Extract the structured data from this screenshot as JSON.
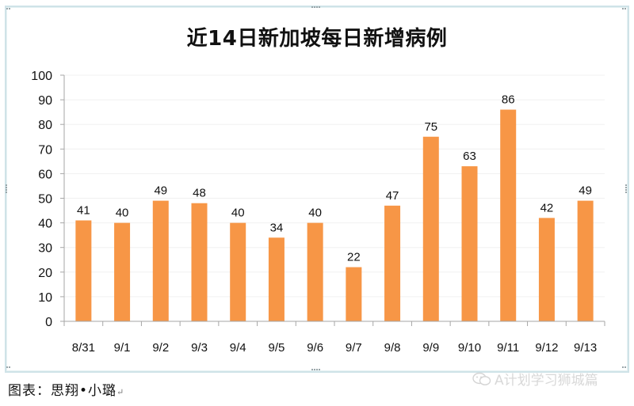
{
  "title": "近14日新加坡每日新增病例",
  "caption": {
    "text": "图表：思翔•小璐",
    "return_mark": "↵"
  },
  "watermark": {
    "icon": "wechat-icon",
    "text": "A计划学习狮城篇"
  },
  "colors": {
    "bar": "#F79646",
    "axis": "#A6A6A6",
    "grid": "#F0F0F0",
    "frame": "#CFE3E8",
    "text": "#111111"
  },
  "chart_data": {
    "type": "bar",
    "title": "近14日新加坡每日新增病例",
    "xlabel": "",
    "ylabel": "",
    "categories": [
      "8/31",
      "9/1",
      "9/2",
      "9/3",
      "9/4",
      "9/5",
      "9/6",
      "9/7",
      "9/8",
      "9/9",
      "9/10",
      "9/11",
      "9/12",
      "9/13"
    ],
    "values": [
      41,
      40,
      49,
      48,
      40,
      34,
      40,
      22,
      47,
      75,
      63,
      86,
      42,
      49
    ],
    "data_labels": true,
    "ylim": [
      0,
      100
    ],
    "yticks": [
      0,
      10,
      20,
      30,
      40,
      50,
      60,
      70,
      80,
      90,
      100
    ],
    "grid": true,
    "legend": null
  }
}
